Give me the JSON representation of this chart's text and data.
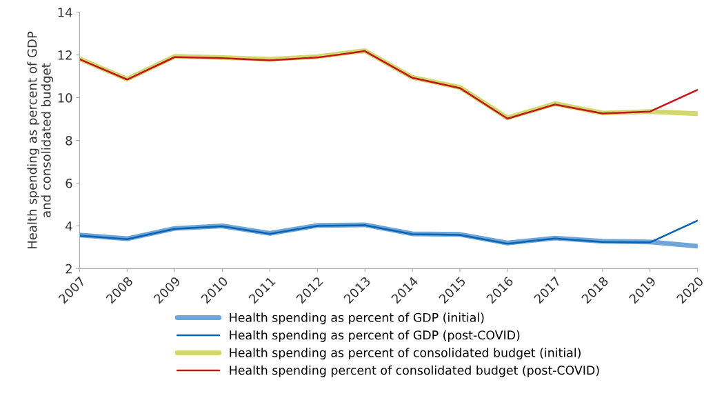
{
  "chart_data": {
    "type": "line",
    "ylabel": "Health spending as percent of GDP\nand consolidated budget",
    "categories": [
      "2007",
      "2008",
      "2009",
      "2010",
      "2011",
      "2012",
      "2013",
      "2014",
      "2015",
      "2016",
      "2017",
      "2018",
      "2019",
      "2020"
    ],
    "series": [
      {
        "name": "Health spending as percent of GDP (initial)",
        "color": "#6fa6da",
        "values": [
          3.57,
          3.4,
          3.88,
          4.0,
          3.65,
          4.02,
          4.05,
          3.63,
          3.6,
          3.2,
          3.43,
          3.28,
          3.25,
          3.05
        ]
      },
      {
        "name": "Health spending as percent of GDP (post-COVID)",
        "color": "#0a63b0",
        "values": [
          3.55,
          3.38,
          3.86,
          3.98,
          3.63,
          4.0,
          4.03,
          3.61,
          3.58,
          3.17,
          3.41,
          3.25,
          3.23,
          4.25
        ]
      },
      {
        "name": "Health spending as percent of consolidated budget (initial)",
        "color": "#d2d86e",
        "values": [
          11.82,
          10.87,
          11.93,
          11.88,
          11.8,
          11.92,
          12.2,
          10.95,
          10.48,
          9.06,
          9.72,
          9.28,
          9.35,
          9.25
        ]
      },
      {
        "name": "Health spending percent of consolidated budget (post-COVID)",
        "color": "#c0161e",
        "values": [
          11.8,
          10.85,
          11.9,
          11.85,
          11.75,
          11.88,
          12.18,
          10.93,
          10.45,
          9.02,
          9.68,
          9.26,
          9.35,
          10.37
        ]
      }
    ],
    "ylim": [
      2,
      14
    ],
    "yticks": [
      2,
      4,
      6,
      8,
      10,
      12,
      14
    ],
    "grid": false,
    "legend": "bottom",
    "marker": "none"
  }
}
